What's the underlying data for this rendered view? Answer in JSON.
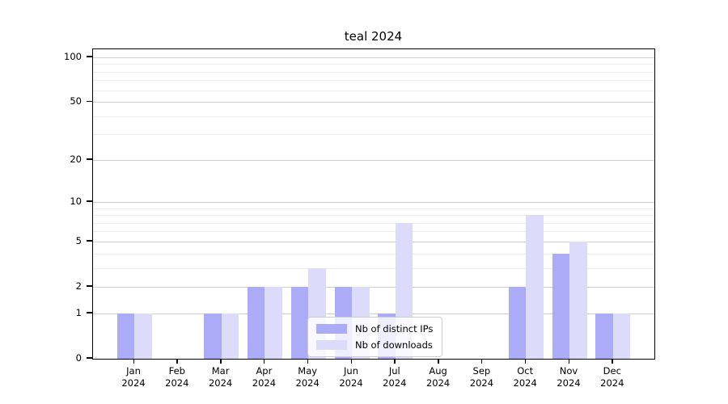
{
  "chart_data": {
    "type": "bar",
    "title": "teal 2024",
    "categories": [
      "Jan 2024",
      "Feb 2024",
      "Mar 2024",
      "Apr 2024",
      "May 2024",
      "Jun 2024",
      "Jul 2024",
      "Aug 2024",
      "Sep 2024",
      "Oct 2024",
      "Nov 2024",
      "Dec 2024"
    ],
    "month_labels": [
      "Jan",
      "Feb",
      "Mar",
      "Apr",
      "May",
      "Jun",
      "Jul",
      "Aug",
      "Sep",
      "Oct",
      "Nov",
      "Dec"
    ],
    "year_labels": [
      "2024",
      "2024",
      "2024",
      "2024",
      "2024",
      "2024",
      "2024",
      "2024",
      "2024",
      "2024",
      "2024",
      "2024"
    ],
    "series": [
      {
        "name": "Nb of distinct IPs",
        "color": "#ababf7",
        "values": [
          1,
          0,
          1,
          2,
          2,
          2,
          1,
          0,
          0,
          2,
          4,
          1
        ]
      },
      {
        "name": "Nb of downloads",
        "color": "#dcdcfa",
        "values": [
          1,
          0,
          1,
          2,
          3,
          2,
          7,
          0,
          0,
          8,
          5,
          1
        ]
      }
    ],
    "xlabel": "",
    "ylabel": "",
    "yscale": "log1p",
    "ylim": [
      0,
      114
    ],
    "y_major_ticks": [
      0,
      1,
      2,
      5,
      10,
      20,
      50,
      100
    ],
    "y_tick_labels": [
      "0",
      "1",
      "2",
      "5",
      "10",
      "20",
      "50",
      "100"
    ],
    "y_minor_ticks": [
      3,
      4,
      6,
      7,
      8,
      9,
      30,
      40,
      60,
      70,
      80,
      90
    ],
    "grid": "horizontal",
    "legend_position": "lower center"
  }
}
